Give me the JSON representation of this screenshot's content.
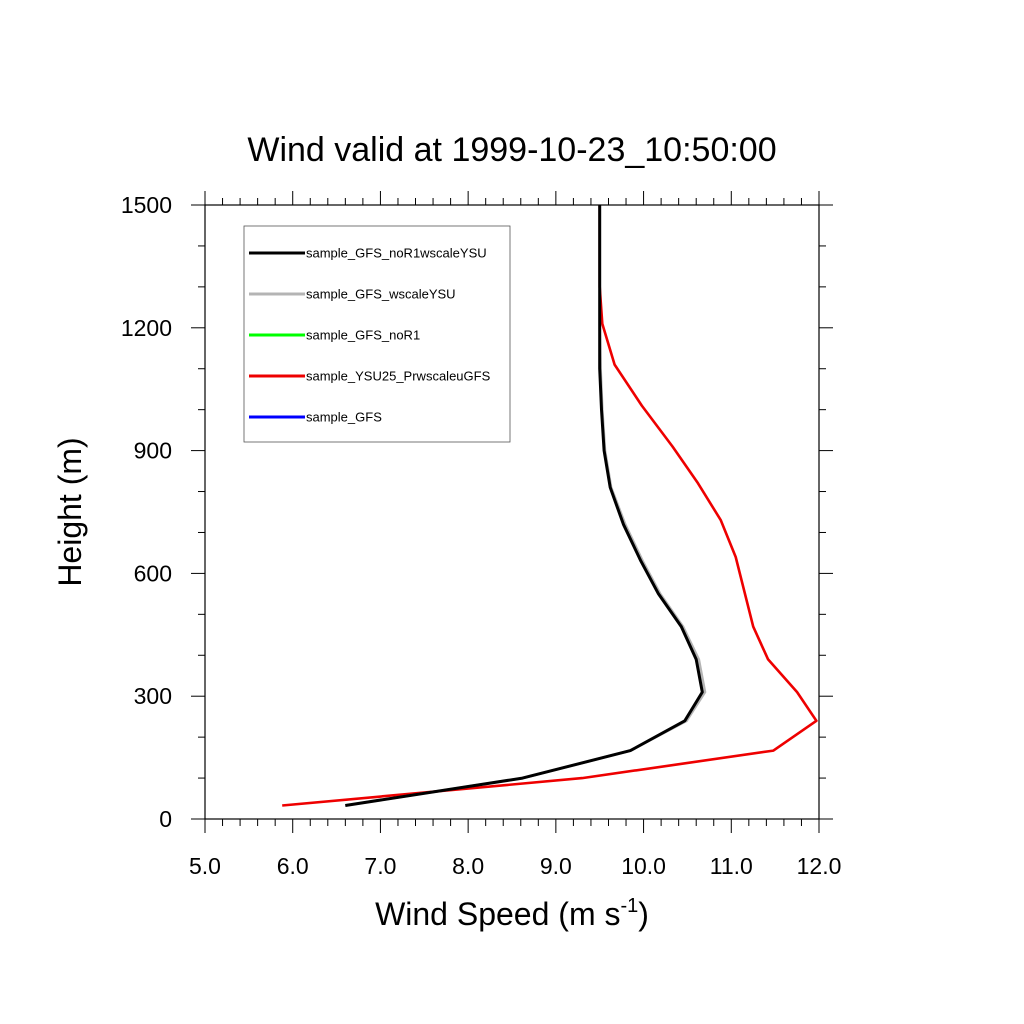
{
  "chart_data": {
    "type": "line",
    "title": "Wind valid at 1999-10-23_10:50:00",
    "xlabel": "Wind Speed (m s",
    "xlabel_sup": "-1",
    "xlabel_end": ")",
    "ylabel": "Height (m)",
    "xlim": [
      5.0,
      12.0
    ],
    "ylim": [
      0,
      1500
    ],
    "x_ticks": [
      "5.0",
      "6.0",
      "7.0",
      "8.0",
      "9.0",
      "10.0",
      "11.0",
      "12.0"
    ],
    "y_ticks": [
      "0",
      "300",
      "600",
      "900",
      "1200",
      "1500"
    ],
    "grid": false,
    "legend_position": "top-left",
    "series": [
      {
        "name": "sample_GFS_noR1wscaleYSU",
        "color": "#000000",
        "points": [
          [
            6.6,
            33
          ],
          [
            8.62,
            100
          ],
          [
            9.85,
            167
          ],
          [
            10.47,
            240
          ],
          [
            10.67,
            310
          ],
          [
            10.6,
            390
          ],
          [
            10.43,
            470
          ],
          [
            10.17,
            550
          ],
          [
            9.97,
            630
          ],
          [
            9.77,
            720
          ],
          [
            9.62,
            810
          ],
          [
            9.55,
            900
          ],
          [
            9.52,
            1000
          ],
          [
            9.5,
            1100
          ],
          [
            9.5,
            1200
          ],
          [
            9.5,
            1300
          ],
          [
            9.5,
            1400
          ],
          [
            9.5,
            1500
          ]
        ]
      },
      {
        "name": "sample_GFS_wscaleYSU",
        "color": "#b4b4b4",
        "points": [
          [
            6.6,
            33
          ],
          [
            8.62,
            100
          ],
          [
            9.85,
            167
          ],
          [
            10.49,
            240
          ],
          [
            10.7,
            310
          ],
          [
            10.63,
            390
          ],
          [
            10.45,
            470
          ],
          [
            10.19,
            550
          ],
          [
            9.99,
            630
          ],
          [
            9.79,
            720
          ],
          [
            9.63,
            810
          ],
          [
            9.56,
            900
          ],
          [
            9.53,
            1000
          ],
          [
            9.51,
            1100
          ],
          [
            9.5,
            1200
          ],
          [
            9.5,
            1300
          ],
          [
            9.5,
            1400
          ],
          [
            9.5,
            1500
          ]
        ]
      },
      {
        "name": "sample_GFS_noR1",
        "color": "#00ff00",
        "points": []
      },
      {
        "name": "sample_YSU25_PrwscaleuGFS",
        "color": "#ee0000",
        "points": [
          [
            5.88,
            33
          ],
          [
            9.3,
            100
          ],
          [
            11.48,
            167
          ],
          [
            11.97,
            240
          ],
          [
            11.75,
            310
          ],
          [
            11.42,
            390
          ],
          [
            11.25,
            470
          ],
          [
            11.05,
            640
          ],
          [
            10.88,
            730
          ],
          [
            10.62,
            820
          ],
          [
            10.33,
            910
          ],
          [
            9.98,
            1010
          ],
          [
            9.67,
            1110
          ],
          [
            9.53,
            1210
          ],
          [
            9.5,
            1300
          ],
          [
            9.5,
            1400
          ],
          [
            9.5,
            1500
          ]
        ]
      },
      {
        "name": "sample_GFS",
        "color": "#0000ff",
        "points": []
      }
    ]
  }
}
